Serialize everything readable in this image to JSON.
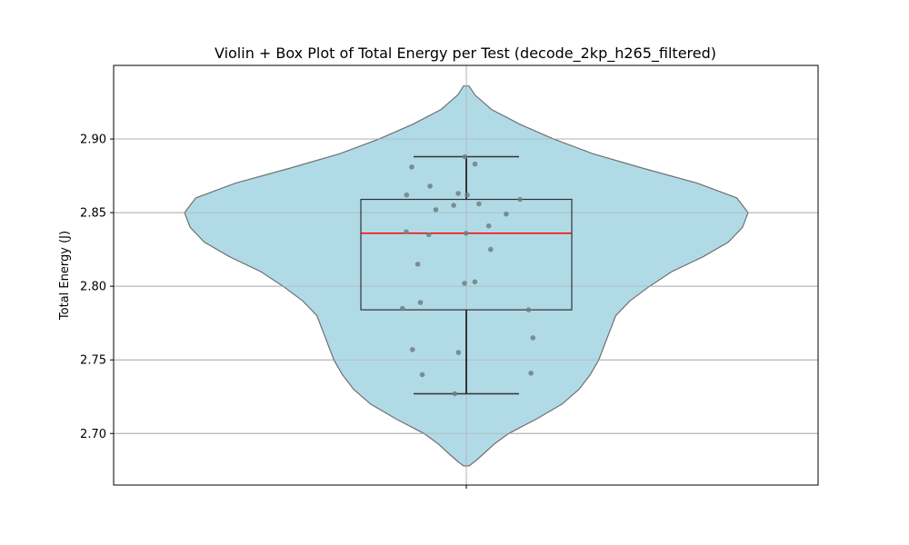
{
  "chart_data": {
    "type": "violin",
    "title": "Violin + Box Plot of Total Energy per Test (decode_2kp_h265_filtered)",
    "xlabel": "",
    "ylabel": "Total Energy (J)",
    "ylim": [
      2.665,
      2.95
    ],
    "yticks": [
      "2.70",
      "2.75",
      "2.80",
      "2.85",
      "2.90"
    ],
    "grid": true,
    "colors": {
      "violin_fill": "#add8e6",
      "violin_edge": "#707070",
      "box_edge": "#333333",
      "median": "#ff0000",
      "points": "#6e7f85",
      "grid": "#b0b0b0"
    },
    "density": {
      "y": [
        2.678,
        2.681,
        2.686,
        2.693,
        2.7,
        2.71,
        2.72,
        2.73,
        2.74,
        2.75,
        2.76,
        2.77,
        2.78,
        2.79,
        2.8,
        2.81,
        2.82,
        2.83,
        2.84,
        2.85,
        2.86,
        2.87,
        2.88,
        2.89,
        2.9,
        2.91,
        2.92,
        2.93,
        2.936
      ],
      "halfwidth": [
        0.01,
        0.03,
        0.06,
        0.1,
        0.15,
        0.25,
        0.34,
        0.4,
        0.44,
        0.47,
        0.49,
        0.51,
        0.53,
        0.58,
        0.65,
        0.73,
        0.84,
        0.93,
        0.98,
        1.0,
        0.96,
        0.82,
        0.63,
        0.45,
        0.31,
        0.19,
        0.09,
        0.03,
        0.01
      ]
    },
    "box": {
      "whisker_low": 2.727,
      "q1": 2.784,
      "median": 2.836,
      "q3": 2.859,
      "whisker_high": 2.888
    },
    "points": [
      2.888,
      2.883,
      2.881,
      2.868,
      2.863,
      2.862,
      2.862,
      2.859,
      2.856,
      2.855,
      2.852,
      2.849,
      2.841,
      2.837,
      2.836,
      2.835,
      2.825,
      2.815,
      2.803,
      2.802,
      2.789,
      2.785,
      2.784,
      2.765,
      2.757,
      2.755,
      2.741,
      2.74,
      2.727
    ]
  }
}
